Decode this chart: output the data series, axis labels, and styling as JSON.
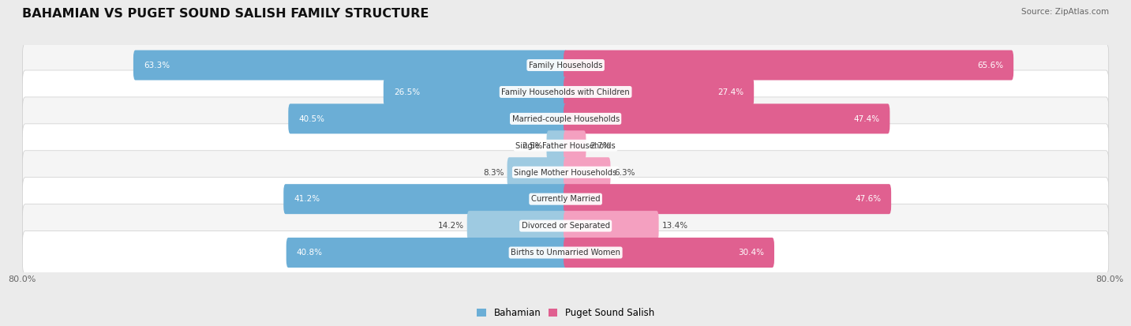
{
  "title": "BAHAMIAN VS PUGET SOUND SALISH FAMILY STRUCTURE",
  "source": "Source: ZipAtlas.com",
  "categories": [
    "Family Households",
    "Family Households with Children",
    "Married-couple Households",
    "Single Father Households",
    "Single Mother Households",
    "Currently Married",
    "Divorced or Separated",
    "Births to Unmarried Women"
  ],
  "bahamian_values": [
    63.3,
    26.5,
    40.5,
    2.5,
    8.3,
    41.2,
    14.2,
    40.8
  ],
  "puget_values": [
    65.6,
    27.4,
    47.4,
    2.7,
    6.3,
    47.6,
    13.4,
    30.4
  ],
  "bahamian_labels": [
    "63.3%",
    "26.5%",
    "40.5%",
    "2.5%",
    "8.3%",
    "41.2%",
    "14.2%",
    "40.8%"
  ],
  "puget_labels": [
    "65.6%",
    "27.4%",
    "47.4%",
    "2.7%",
    "6.3%",
    "47.6%",
    "13.4%",
    "30.4%"
  ],
  "bahamian_color_dark": "#6baed6",
  "bahamian_color_light": "#9ecae1",
  "puget_color_dark": "#e06090",
  "puget_color_light": "#f4a0c0",
  "axis_max": 80.0,
  "axis_label_left": "80.0%",
  "axis_label_right": "80.0%",
  "legend_label_bahamian": "Bahamian",
  "legend_label_puget": "Puget Sound Salish",
  "bg_color": "#ebebeb",
  "row_bg_even": "#f5f5f5",
  "row_bg_odd": "#ffffff"
}
